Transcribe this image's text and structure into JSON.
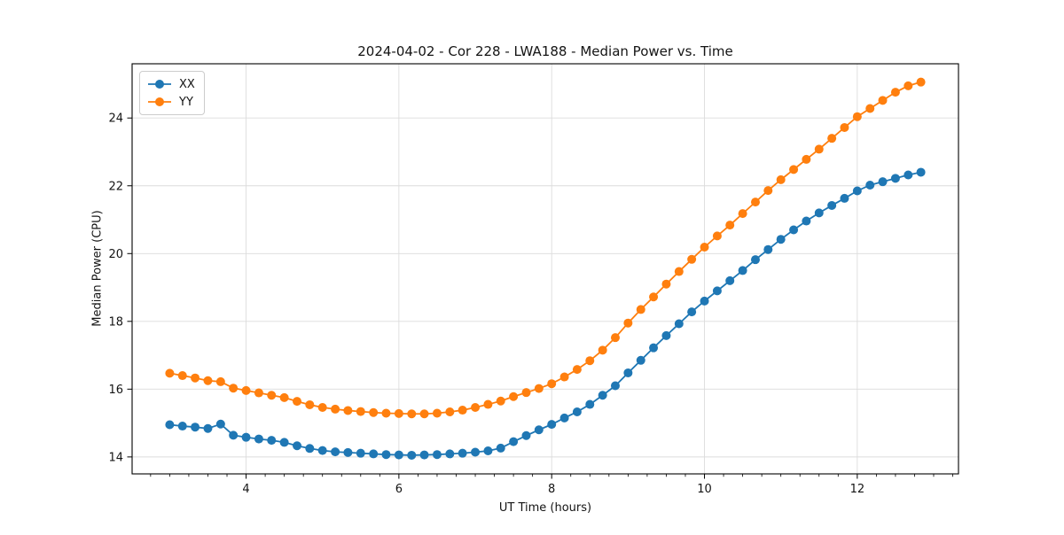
{
  "figure": {
    "title": "2024-04-02 - Cor 228 - LWA188 - Median Power vs. Time"
  },
  "chart_data": {
    "type": "line",
    "title": "2024-04-02 - Cor 228 - LWA188 - Median Power vs. Time",
    "xlabel": "UT Time (hours)",
    "ylabel": "Median Power (CPU)",
    "legend_position": "upper-left",
    "grid": true,
    "marker": "circle",
    "xlim": [
      2.508,
      13.325
    ],
    "ylim": [
      13.5,
      25.6
    ],
    "xticks": [
      4,
      6,
      8,
      10,
      12
    ],
    "yticks": [
      14,
      16,
      18,
      20,
      22,
      24
    ],
    "x_minor_tick_step": 0.25,
    "x": [
      3.0,
      3.167,
      3.333,
      3.5,
      3.667,
      3.833,
      4.0,
      4.167,
      4.333,
      4.5,
      4.667,
      4.833,
      5.0,
      5.167,
      5.333,
      5.5,
      5.667,
      5.833,
      6.0,
      6.167,
      6.333,
      6.5,
      6.667,
      6.833,
      7.0,
      7.167,
      7.333,
      7.5,
      7.667,
      7.833,
      8.0,
      8.167,
      8.333,
      8.5,
      8.667,
      8.833,
      9.0,
      9.167,
      9.333,
      9.5,
      9.667,
      9.833,
      10.0,
      10.167,
      10.333,
      10.5,
      10.667,
      10.833,
      11.0,
      11.167,
      11.333,
      11.5,
      11.667,
      11.833,
      12.0,
      12.167,
      12.333,
      12.5,
      12.667,
      12.833
    ],
    "series": [
      {
        "name": "XX",
        "color": "#1f77b4",
        "values": [
          14.95,
          14.91,
          14.88,
          14.84,
          14.97,
          14.64,
          14.58,
          14.53,
          14.49,
          14.43,
          14.33,
          14.25,
          14.19,
          14.15,
          14.13,
          14.11,
          14.09,
          14.07,
          14.06,
          14.05,
          14.06,
          14.07,
          14.09,
          14.11,
          14.14,
          14.18,
          14.26,
          14.45,
          14.63,
          14.8,
          14.96,
          15.15,
          15.33,
          15.55,
          15.82,
          16.1,
          16.48,
          16.85,
          17.22,
          17.58,
          17.93,
          18.28,
          18.6,
          18.9,
          19.2,
          19.5,
          19.82,
          20.12,
          20.42,
          20.7,
          20.96,
          21.2,
          21.42,
          21.63,
          21.85,
          22.02,
          22.12,
          22.22,
          22.32,
          22.4
        ]
      },
      {
        "name": "YY",
        "color": "#ff7f0e",
        "values": [
          16.47,
          16.4,
          16.33,
          16.25,
          16.22,
          16.03,
          15.96,
          15.89,
          15.82,
          15.75,
          15.64,
          15.54,
          15.46,
          15.41,
          15.37,
          15.34,
          15.31,
          15.29,
          15.28,
          15.27,
          15.27,
          15.29,
          15.33,
          15.38,
          15.46,
          15.55,
          15.65,
          15.78,
          15.9,
          16.02,
          16.16,
          16.36,
          16.58,
          16.84,
          17.15,
          17.52,
          17.95,
          18.35,
          18.72,
          19.1,
          19.47,
          19.83,
          20.19,
          20.52,
          20.84,
          21.18,
          21.52,
          21.86,
          22.18,
          22.48,
          22.78,
          23.08,
          23.4,
          23.72,
          24.04,
          24.28,
          24.52,
          24.76,
          24.95,
          25.06
        ]
      }
    ]
  },
  "style": {
    "grid_color": "#dcdcdc",
    "spine_color": "#000000",
    "text_color": "#141414",
    "background": "#ffffff"
  }
}
